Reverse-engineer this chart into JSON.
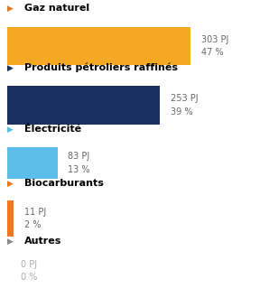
{
  "categories": [
    "Gaz naturel",
    "Produits pétroliers raffinés",
    "Électricité",
    "Biocarburants",
    "Autres"
  ],
  "values": [
    303,
    253,
    83,
    11,
    0
  ],
  "percentages": [
    47,
    39,
    13,
    2,
    0
  ],
  "bar_colors": [
    "#F5A823",
    "#1B3060",
    "#5BBDE8",
    "#F07820",
    "#999999"
  ],
  "arrow_colors": [
    "#E87722",
    "#1B3060",
    "#5BBDE8",
    "#E87722",
    "#888888"
  ],
  "max_value": 303,
  "background_color": "#ffffff",
  "value_label_color": "#666666",
  "autres_value_color": "#aaaaaa"
}
